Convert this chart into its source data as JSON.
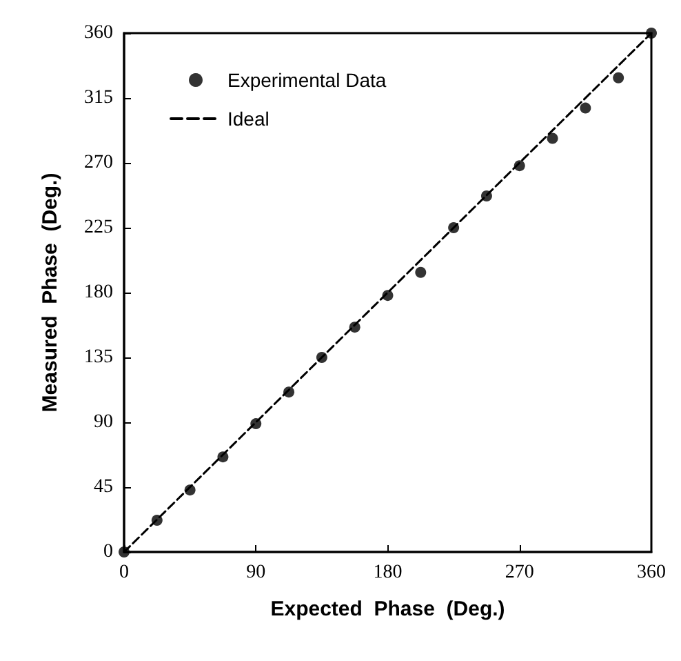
{
  "chart_data": {
    "type": "scatter",
    "xlabel": "Expected  Phase  (Deg.)",
    "ylabel": "Measured  Phase  (Deg.)",
    "xlim": [
      0,
      360
    ],
    "xticks": [
      0,
      90,
      180,
      270,
      360
    ],
    "ylim": [
      0,
      360
    ],
    "yticks": [
      0,
      45,
      90,
      135,
      180,
      225,
      270,
      315,
      360
    ],
    "grid": false,
    "legend": "top left",
    "series": [
      {
        "name": "Experimental Data",
        "marker": "circle",
        "color": "#000000",
        "x": [
          0,
          22.5,
          45,
          67.5,
          90,
          112.5,
          135,
          157.5,
          180,
          202.5,
          225,
          247.5,
          270,
          292.5,
          315,
          337.5,
          360
        ],
        "values": [
          0,
          22,
          43,
          66,
          89,
          111,
          135,
          156,
          178,
          194,
          225,
          247,
          268,
          287,
          308,
          329,
          360
        ]
      },
      {
        "name": "Ideal",
        "type": "line",
        "marker": "none",
        "line_style": "dashed",
        "color": "#000000",
        "x": [
          0,
          360
        ],
        "values": [
          0,
          360
        ]
      }
    ]
  }
}
